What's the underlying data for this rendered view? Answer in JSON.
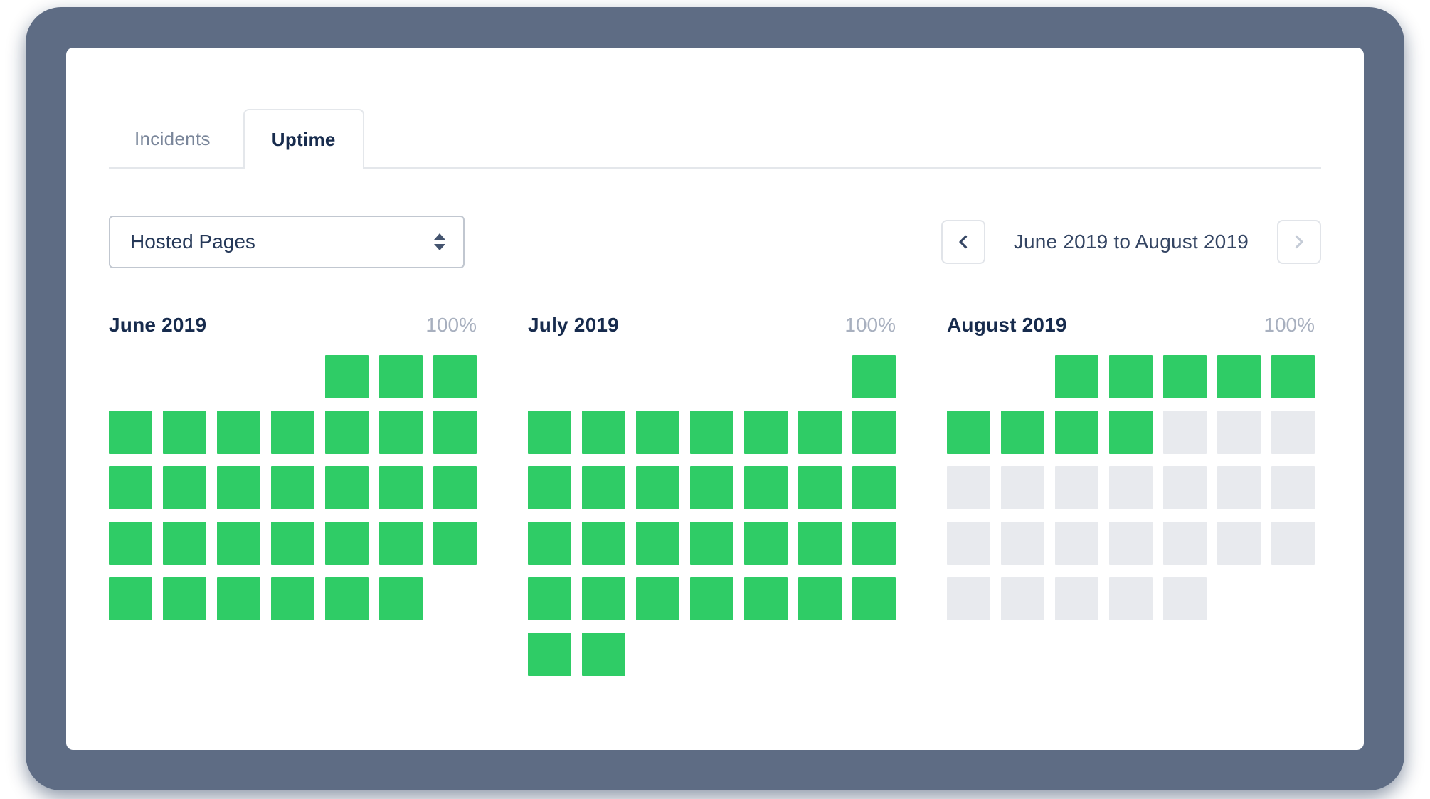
{
  "tabs": [
    {
      "label": "Incidents",
      "active": false
    },
    {
      "label": "Uptime",
      "active": true
    }
  ],
  "filter": {
    "selected": "Hosted Pages"
  },
  "range_nav": {
    "label": "June 2019 to August 2019",
    "prev_enabled": true,
    "next_enabled": false
  },
  "months": [
    {
      "name": "June 2019",
      "uptime": "100%",
      "rows": [
        "....GGG",
        "GGGGGGG",
        "GGGGGGG",
        "GGGGGGG",
        "GGGGGG."
      ]
    },
    {
      "name": "July 2019",
      "uptime": "100%",
      "rows": [
        "......G",
        "GGGGGGG",
        "GGGGGGG",
        "GGGGGGG",
        "GGGGGGG",
        "GG....."
      ]
    },
    {
      "name": "August 2019",
      "uptime": "100%",
      "rows": [
        "..GGGGG",
        "GGGGEEE",
        "EEEEEEE",
        "EEEEEEE",
        "EEEEE.."
      ]
    }
  ],
  "cell_states": {
    "G": "operational",
    "E": "no-data",
    ".": "blank"
  },
  "colors": {
    "operational": "#2fcc66",
    "empty": "#e8eaee",
    "frame": "#5e6c84"
  }
}
